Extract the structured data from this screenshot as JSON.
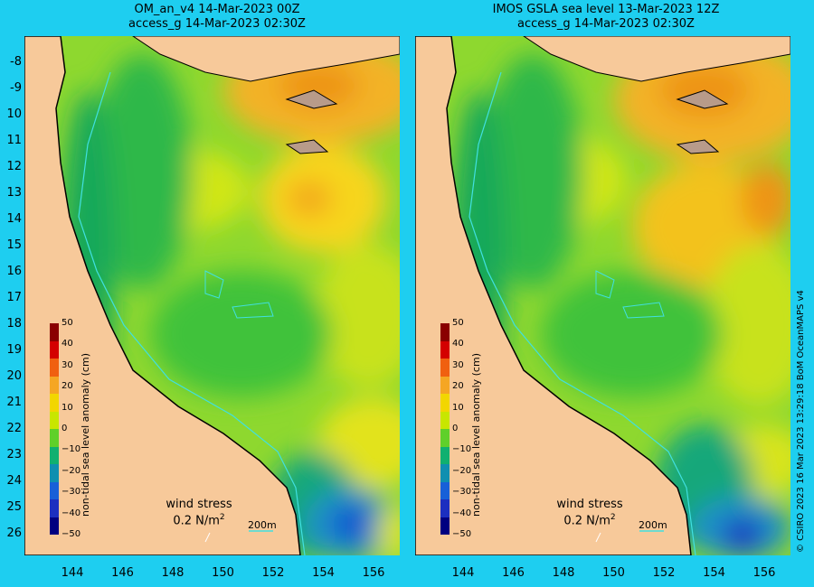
{
  "titles": {
    "left_line1": "OM_an_v4  14-Mar-2023 00Z",
    "left_line2": "access_g 14-Mar-2023 02:30Z",
    "right_line1": "IMOS GSLA sea level  13-Mar-2023 12Z",
    "right_line2": "access_g 14-Mar-2023 02:30Z"
  },
  "lat_labels": [
    "-8",
    "-9",
    "10",
    "11",
    "12",
    "13",
    "14",
    "15",
    "16",
    "17",
    "18",
    "19",
    "20",
    "21",
    "22",
    "23",
    "24",
    "25",
    "26"
  ],
  "lon_labels": [
    "144",
    "146",
    "148",
    "150",
    "152",
    "154",
    "156"
  ],
  "colorbar": {
    "title": "non-tidal sea level anomaly (cm)",
    "ticks": [
      "50",
      "40",
      "30",
      "20",
      "10",
      "0",
      "−10",
      "−20",
      "−30",
      "−40",
      "−50"
    ],
    "colors": [
      "#8a0000",
      "#d40000",
      "#f06010",
      "#f5a623",
      "#f2d600",
      "#c8e600",
      "#5fd02a",
      "#10b070",
      "#0f8fb0",
      "#1860d8",
      "#1c2fc0",
      "#000080"
    ]
  },
  "legend": {
    "wind_label": "wind stress",
    "wind_value": "0.2 N/m",
    "wind_sup": "2",
    "depth_scale": "200m"
  },
  "credit": "© CSIRO 2023   16 Mar 2023 13:29:18 BoM OceanMAPS v4",
  "colors": {
    "land": "#f7c99a",
    "background": "#1ecef0",
    "coast": "#000000",
    "isobath": "#40e0e0"
  }
}
